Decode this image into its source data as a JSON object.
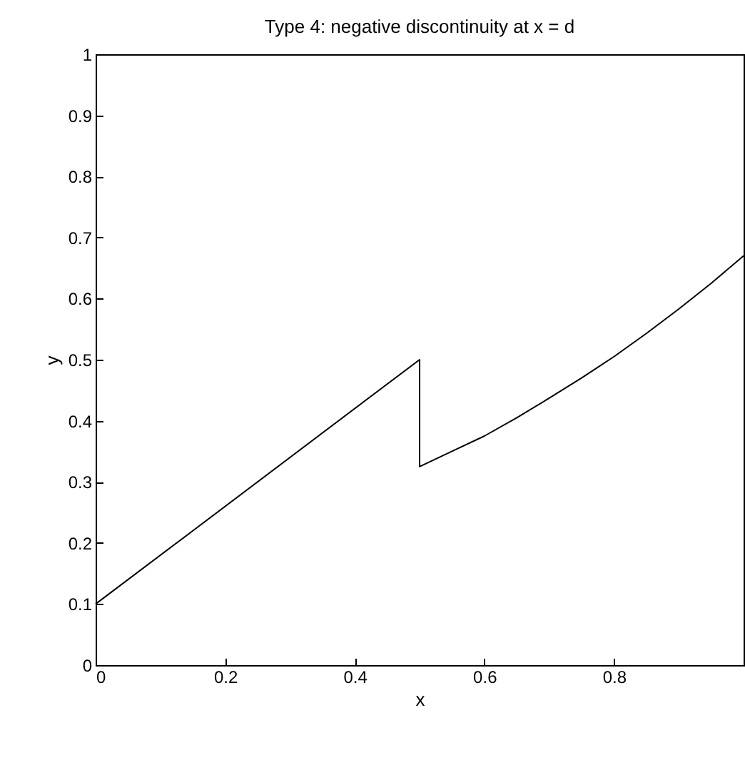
{
  "chart_data": {
    "type": "line",
    "title": "Type 4: negative discontinuity at x = d",
    "xlabel": "x",
    "ylabel": "y",
    "series": [
      {
        "color": "#000000",
        "x": [
          0,
          0.5,
          0.5,
          0.55,
          0.6,
          0.65,
          0.7,
          0.75,
          0.8,
          0.85,
          0.9,
          0.95,
          1
        ],
        "values": [
          0.1,
          0.5,
          0.325,
          0.35,
          0.375,
          0.405,
          0.437,
          0.47,
          0.505,
          0.543,
          0.583,
          0.625,
          0.67
        ]
      }
    ],
    "xlim": [
      0,
      1
    ],
    "xticks": [
      0,
      0.2,
      0.4,
      0.6,
      0.8
    ],
    "ylim": [
      0,
      1
    ],
    "yticks": [
      0,
      0.1,
      0.2,
      0.3,
      0.4,
      0.5,
      0.6,
      0.7,
      0.8,
      0.9,
      1
    ],
    "grid": false,
    "marker": "none",
    "line_style": "solid"
  }
}
